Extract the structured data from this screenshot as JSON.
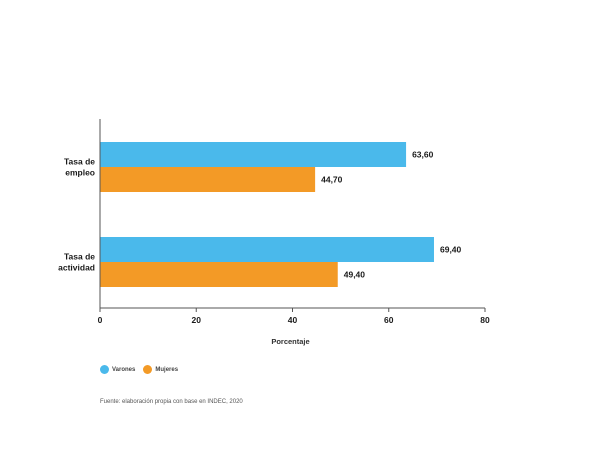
{
  "chart_data": {
    "type": "bar",
    "orientation": "horizontal",
    "title": "",
    "xlabel": "Porcentaje",
    "ylabel": "",
    "categories": [
      "Tasa de empleo",
      "Tasa de actividad"
    ],
    "category_lines": [
      [
        "Tasa de",
        "empleo"
      ],
      [
        "Tasa de",
        "actividad"
      ]
    ],
    "series": [
      {
        "name": "Varones",
        "color": "#4ab9eb",
        "values": [
          63.6,
          69.4
        ],
        "value_labels": [
          "63,60",
          "69,40"
        ]
      },
      {
        "name": "Mujeres",
        "color": "#f39a26",
        "values": [
          44.7,
          49.4
        ],
        "value_labels": [
          "44,70",
          "49,40"
        ]
      }
    ],
    "xlim": [
      0,
      80
    ],
    "xticks": [
      0,
      20,
      40,
      60,
      80
    ],
    "grid": false,
    "legend_position": "bottom-left"
  },
  "source_note": "Fuente: elaboración propia con base en INDEC, 2020"
}
